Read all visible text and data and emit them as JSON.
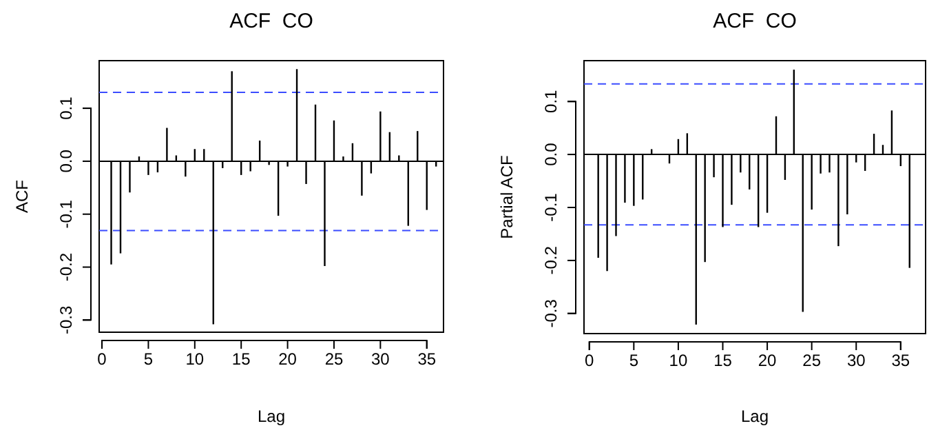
{
  "chart_data": [
    {
      "type": "bar",
      "title": "ACF  CO",
      "xlabel": "Lag",
      "ylabel": "ACF",
      "color": "#000000",
      "x": [
        1,
        2,
        3,
        4,
        5,
        6,
        7,
        8,
        9,
        10,
        11,
        12,
        13,
        14,
        15,
        16,
        17,
        18,
        19,
        20,
        21,
        22,
        23,
        24,
        25,
        26,
        27,
        28,
        29,
        30,
        31,
        32,
        33,
        34,
        35,
        36
      ],
      "values": [
        -0.195,
        -0.174,
        -0.059,
        0.009,
        -0.026,
        -0.021,
        0.063,
        0.011,
        -0.029,
        0.023,
        0.023,
        -0.308,
        -0.013,
        0.17,
        -0.026,
        -0.019,
        0.039,
        -0.007,
        -0.103,
        -0.01,
        0.174,
        -0.043,
        0.107,
        -0.198,
        0.077,
        0.009,
        0.034,
        -0.065,
        -0.023,
        0.094,
        0.055,
        0.011,
        -0.122,
        0.057,
        -0.092,
        -0.01
      ],
      "xlim": [
        -0.3,
        36.8
      ],
      "xticks": [
        0,
        5,
        10,
        15,
        20,
        25,
        30,
        35
      ],
      "ylim": [
        -0.323,
        0.19
      ],
      "yticks": [
        {
          "value": -0.3,
          "label": "-0.3"
        },
        {
          "value": -0.2,
          "label": "-0.2"
        },
        {
          "value": -0.1,
          "label": "-0.1"
        },
        {
          "value": 0,
          "label": "0.0"
        },
        {
          "value": 0.1,
          "label": "0.1"
        }
      ],
      "ref_lines": [
        {
          "axis": "y",
          "value": 0,
          "color": "#000000",
          "line_style": "solid"
        },
        {
          "axis": "y",
          "value": 0.13,
          "color": "#3b4cff",
          "line_style": "dashed"
        },
        {
          "axis": "y",
          "value": -0.131,
          "color": "#3b4cff",
          "line_style": "dashed"
        }
      ],
      "grid": false
    },
    {
      "type": "bar",
      "title": "ACF  CO",
      "xlabel": "Lag",
      "ylabel": "Partial ACF",
      "color": "#000000",
      "x": [
        1,
        2,
        3,
        4,
        5,
        6,
        7,
        8,
        9,
        10,
        11,
        12,
        13,
        14,
        15,
        16,
        17,
        18,
        19,
        20,
        21,
        22,
        23,
        24,
        25,
        26,
        27,
        28,
        29,
        30,
        31,
        32,
        33,
        34,
        35,
        36
      ],
      "values": [
        -0.195,
        -0.22,
        -0.154,
        -0.091,
        -0.097,
        -0.085,
        0.01,
        null,
        -0.017,
        0.029,
        0.04,
        -0.321,
        -0.203,
        -0.043,
        -0.137,
        -0.095,
        -0.034,
        -0.066,
        -0.137,
        -0.11,
        0.072,
        -0.048,
        0.16,
        -0.297,
        -0.104,
        -0.036,
        -0.034,
        -0.173,
        -0.113,
        -0.015,
        -0.031,
        0.039,
        0.018,
        0.083,
        -0.022,
        -0.214
      ],
      "xlim": [
        -0.6,
        37.8
      ],
      "xticks": [
        0,
        5,
        10,
        15,
        20,
        25,
        30,
        35
      ],
      "ylim": [
        -0.338,
        0.177
      ],
      "yticks": [
        {
          "value": -0.3,
          "label": "-0.3"
        },
        {
          "value": -0.2,
          "label": "-0.2"
        },
        {
          "value": -0.1,
          "label": "-0.1"
        },
        {
          "value": 0,
          "label": "0.0"
        },
        {
          "value": 0.1,
          "label": "0.1"
        }
      ],
      "ref_lines": [
        {
          "axis": "y",
          "value": 0,
          "color": "#000000",
          "line_style": "solid"
        },
        {
          "axis": "y",
          "value": 0.133,
          "color": "#3b4cff",
          "line_style": "dashed"
        },
        {
          "axis": "y",
          "value": -0.133,
          "color": "#3b4cff",
          "line_style": "dashed"
        }
      ],
      "grid": false
    }
  ]
}
